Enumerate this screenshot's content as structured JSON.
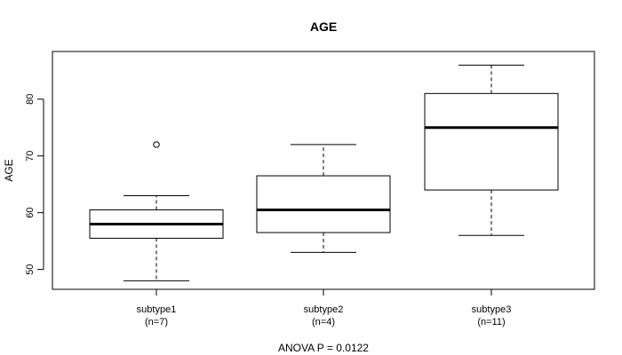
{
  "chart_data": {
    "type": "boxplot",
    "title": "AGE",
    "ylabel": "AGE",
    "xlabel": "ANOVA P = 0.0122",
    "ylim": [
      46.5,
      88.4
    ],
    "yticks": [
      50,
      60,
      70,
      80
    ],
    "groups": [
      {
        "name": "subtype1",
        "n_label": "(n=7)",
        "whisker_low": 48,
        "q1": 55.5,
        "median": 58,
        "q3": 60.5,
        "whisker_high": 63,
        "outliers": [
          72
        ]
      },
      {
        "name": "subtype2",
        "n_label": "(n=4)",
        "whisker_low": 53,
        "q1": 56.5,
        "median": 60.5,
        "q3": 66.5,
        "whisker_high": 72,
        "outliers": []
      },
      {
        "name": "subtype3",
        "n_label": "(n=11)",
        "whisker_low": 56,
        "q1": 64,
        "median": 75,
        "q3": 81,
        "whisker_high": 86,
        "outliers": []
      }
    ]
  }
}
